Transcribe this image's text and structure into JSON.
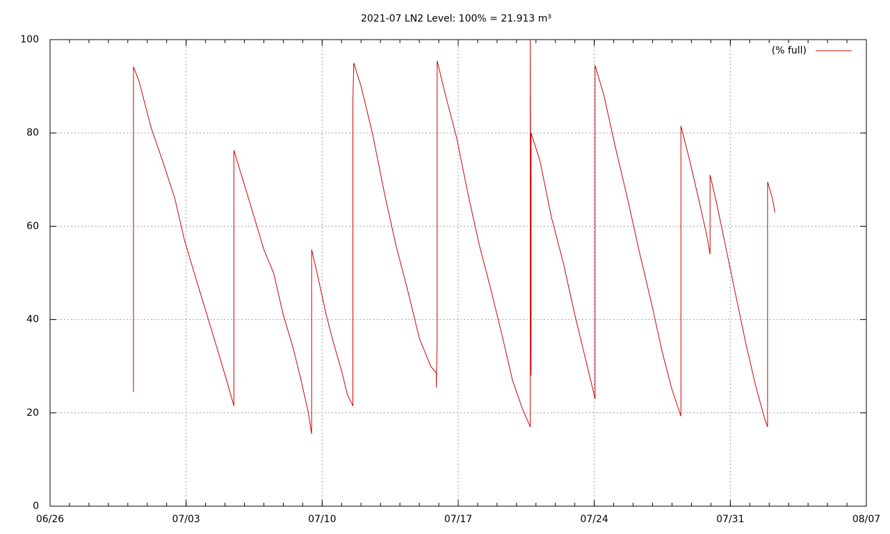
{
  "chart_data": {
    "type": "line",
    "title": "2021-07 LN2 Level: 100% = 21.913 m³",
    "xlim": [
      "06/26",
      "08/07"
    ],
    "xticks": [
      "06/26",
      "07/03",
      "07/10",
      "07/17",
      "07/24",
      "07/31",
      "08/07"
    ],
    "ylim": [
      0,
      100
    ],
    "yticks": [
      0,
      20,
      40,
      60,
      80,
      100
    ],
    "grid": true,
    "legend": "top-right",
    "x": [
      "06/30 07:00",
      "06/30 07:00",
      "06/30 14:00",
      "07/01 05:00",
      "07/01 19:00",
      "07/02 10:00",
      "07/02 22:00",
      "07/03 10:00",
      "07/04 00:00",
      "07/04 14:00",
      "07/05 02:00",
      "07/05 11:00",
      "07/05 11:00",
      "07/05 22:00",
      "07/06 12:00",
      "07/07 00:00",
      "07/07 12:00",
      "07/08 00:00",
      "07/08 12:00",
      "07/08 22:00",
      "07/09 07:00",
      "07/09 11:00",
      "07/09 11:00",
      "07/09 11:00",
      "07/09 19:00",
      "07/10 05:00",
      "07/10 14:00",
      "07/11 00:00",
      "07/11 07:00",
      "07/11 14:00",
      "07/11 14:00",
      "07/11 15:00",
      "07/12 00:00",
      "07/12 14:00",
      "07/13 05:00",
      "07/13 19:00",
      "07/14 10:00",
      "07/15 00:00",
      "07/15 14:00",
      "07/15 21:00",
      "07/15 21:00",
      "07/15 22:00",
      "07/15 22:00",
      "07/16 07:00",
      "07/16 22:00",
      "07/17 12:00",
      "07/18 02:00",
      "07/18 17:00",
      "07/19 07:00",
      "07/19 19:00",
      "07/20 07:00",
      "07/20 17:00",
      "07/20 17:00",
      "07/20 18:00",
      "07/20 18:00",
      "07/21 05:00",
      "07/21 19:00",
      "07/22 10:00",
      "07/23 00:00",
      "07/23 14:00",
      "07/24 01:00",
      "07/24 01:00",
      "07/24 12:00",
      "07/25 02:00",
      "07/25 17:00",
      "07/26 07:00",
      "07/26 22:00",
      "07/27 12:00",
      "07/28 00:00",
      "07/28 11:00",
      "07/28 11:00",
      "07/28 22:00",
      "07/29 10:00",
      "07/29 19:00",
      "07/29 23:00",
      "07/29 23:00",
      "07/30 07:00",
      "07/30 19:00",
      "07/31 07:00",
      "07/31 19:00",
      "08/01 07:00",
      "08/01 18:00",
      "08/01 22:00",
      "08/01 22:00",
      "08/02 04:00",
      "08/02 07:00"
    ],
    "series": [
      {
        "name": "(% full)",
        "color": "#cc0000",
        "values": [
          24.5,
          94.2,
          91,
          81,
          74,
          66,
          57,
          50,
          42,
          34,
          27,
          21.5,
          76.3,
          70,
          62,
          55,
          50,
          41,
          34,
          27,
          20,
          15.5,
          45,
          55,
          49,
          41,
          35,
          29,
          24,
          21.5,
          87,
          95,
          90,
          80,
          67,
          56,
          46,
          36,
          30,
          28.5,
          25.5,
          35,
          95.5,
          89,
          79,
          67,
          56,
          46,
          36,
          27,
          21,
          17,
          100,
          28,
          80,
          74,
          62,
          52,
          41,
          31,
          23,
          94.5,
          88,
          77,
          66,
          55,
          44,
          33,
          25,
          19.3,
          81.5,
          74,
          65,
          58,
          54,
          71,
          65,
          55,
          45,
          35,
          26,
          19,
          17,
          69.5,
          66,
          63
        ]
      }
    ]
  }
}
